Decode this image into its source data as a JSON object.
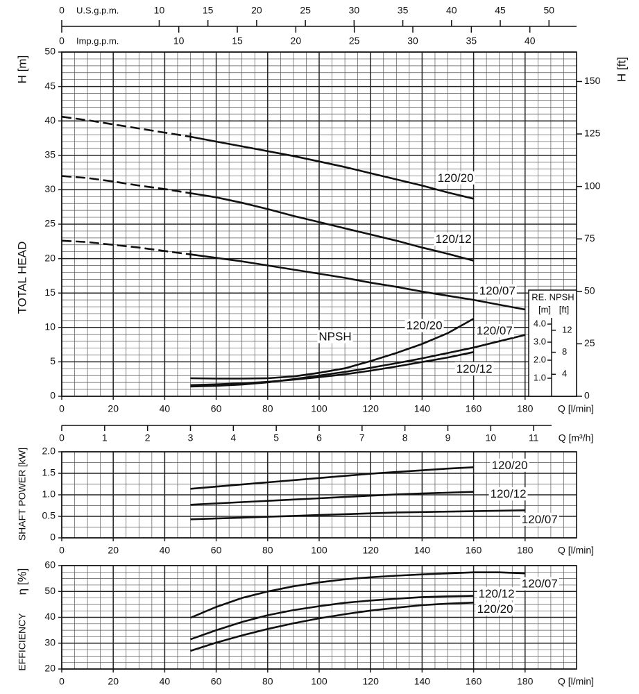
{
  "chart_data": [
    {
      "type": "line",
      "ylabel": "H [m]",
      "ylabel_2": "TOTAL HEAD",
      "y2label": "H [ft]",
      "xlabel": "Q [l/min]",
      "xlim": [
        0,
        200
      ],
      "xticks": [
        0,
        20,
        40,
        60,
        80,
        100,
        120,
        140,
        160,
        180
      ],
      "ylim": [
        0,
        50
      ],
      "yticks": [
        0,
        5,
        10,
        15,
        20,
        25,
        30,
        35,
        40,
        45,
        50
      ],
      "y2lim": [
        0,
        164.04
      ],
      "y2ticks": [
        0,
        25,
        50,
        75,
        100,
        125,
        150
      ],
      "x_minor": 5,
      "y_minor": 1,
      "grid": true,
      "color": "#111111",
      "top_axes": [
        {
          "label": "U.S.g.p.m.",
          "xlim": [
            0,
            52.83
          ],
          "xticks": [
            0,
            10,
            15,
            20,
            25,
            30,
            35,
            40,
            45,
            50
          ]
        },
        {
          "label": "Imp.g.p.m.",
          "xlim": [
            0,
            43.99
          ],
          "xticks": [
            0,
            10,
            15,
            20,
            25,
            30,
            35,
            40
          ]
        }
      ],
      "x2_axis": {
        "label": "Q [m³/h]",
        "xlim": [
          0,
          12
        ],
        "xticks": [
          0,
          1,
          2,
          3,
          4,
          5,
          6,
          7,
          8,
          9,
          10,
          11
        ]
      },
      "series": [
        {
          "name": "120/20",
          "dash_to_x": 50,
          "x": [
            0,
            10,
            20,
            30,
            40,
            50,
            60,
            70,
            80,
            90,
            100,
            110,
            120,
            130,
            140,
            150,
            160
          ],
          "values": [
            40.6,
            40.1,
            39.5,
            38.9,
            38.3,
            37.7,
            37.0,
            36.3,
            35.6,
            34.9,
            34.1,
            33.3,
            32.4,
            31.5,
            30.6,
            29.6,
            28.7
          ]
        },
        {
          "name": "120/12",
          "dash_to_x": 50,
          "x": [
            0,
            10,
            20,
            30,
            40,
            50,
            60,
            70,
            80,
            90,
            100,
            110,
            120,
            130,
            140,
            150,
            160
          ],
          "values": [
            32.0,
            31.7,
            31.2,
            30.6,
            30.1,
            29.5,
            28.9,
            28.1,
            27.2,
            26.2,
            25.3,
            24.4,
            23.5,
            22.6,
            21.6,
            20.7,
            19.7
          ]
        },
        {
          "name": "120/07",
          "dash_to_x": 50,
          "x": [
            0,
            10,
            20,
            30,
            40,
            50,
            60,
            70,
            80,
            90,
            100,
            110,
            120,
            130,
            140,
            150,
            160,
            170,
            180
          ],
          "values": [
            22.6,
            22.4,
            22.0,
            21.6,
            21.1,
            20.6,
            20.1,
            19.6,
            19.0,
            18.4,
            17.8,
            17.2,
            16.5,
            15.9,
            15.2,
            14.6,
            14.0,
            13.3,
            12.6
          ]
        }
      ]
    },
    {
      "type": "line",
      "annotation": "NPSH",
      "inset_title": "RE. NPSH",
      "inset_units": [
        "[m]",
        "[ft]"
      ],
      "xlim": [
        0,
        200
      ],
      "ylim": [
        0,
        4.5
      ],
      "yticks": [
        {
          "value": 1,
          "label": "1.0"
        },
        {
          "value": 2,
          "label": "2.0"
        },
        {
          "value": 3,
          "label": "3.0"
        },
        {
          "value": 4,
          "label": "4.0"
        }
      ],
      "y2lim": [
        0,
        14.76
      ],
      "y2ticks": [
        4,
        8,
        12
      ],
      "color": "#111111",
      "series": [
        {
          "name": "120/20",
          "x": [
            50,
            60,
            70,
            80,
            90,
            100,
            110,
            120,
            130,
            140,
            150,
            160
          ],
          "values": [
            1.0,
            0.98,
            0.98,
            1.0,
            1.1,
            1.3,
            1.55,
            1.95,
            2.4,
            2.9,
            3.5,
            4.3
          ]
        },
        {
          "name": "120/12",
          "x": [
            50,
            60,
            70,
            80,
            90,
            100,
            110,
            120,
            130,
            140,
            150,
            160
          ],
          "values": [
            0.62,
            0.66,
            0.72,
            0.8,
            0.92,
            1.06,
            1.22,
            1.42,
            1.65,
            1.9,
            2.15,
            2.45
          ]
        },
        {
          "name": "120/07",
          "x": [
            50,
            60,
            70,
            80,
            90,
            100,
            110,
            120,
            130,
            140,
            150,
            160,
            170,
            180
          ],
          "values": [
            0.54,
            0.58,
            0.65,
            0.77,
            0.95,
            1.15,
            1.35,
            1.58,
            1.83,
            2.1,
            2.4,
            2.7,
            3.05,
            3.4
          ]
        }
      ]
    },
    {
      "type": "line",
      "ylabel": "SHAFT POWER [kW]",
      "xlabel": "Q [l/min]",
      "xlim": [
        0,
        200
      ],
      "xticks": [
        0,
        20,
        40,
        60,
        80,
        100,
        120,
        140,
        160,
        180
      ],
      "ylim": [
        0,
        2
      ],
      "yticks": [
        0,
        0.5,
        {
          "value": 1,
          "label": "1.0"
        },
        1.5,
        {
          "value": 2,
          "label": "2.0"
        }
      ],
      "x_minor": 5,
      "y_minor": 0.25,
      "grid": true,
      "color": "#111111",
      "series": [
        {
          "name": "120/20",
          "x": [
            50,
            60,
            70,
            80,
            90,
            100,
            110,
            120,
            130,
            140,
            150,
            160
          ],
          "values": [
            1.14,
            1.19,
            1.24,
            1.29,
            1.34,
            1.39,
            1.44,
            1.49,
            1.53,
            1.57,
            1.61,
            1.64
          ]
        },
        {
          "name": "120/12",
          "x": [
            50,
            60,
            70,
            80,
            90,
            100,
            110,
            120,
            130,
            140,
            150,
            160
          ],
          "values": [
            0.77,
            0.8,
            0.83,
            0.86,
            0.89,
            0.92,
            0.95,
            0.98,
            1.01,
            1.03,
            1.05,
            1.07
          ]
        },
        {
          "name": "120/07",
          "x": [
            50,
            60,
            70,
            80,
            90,
            100,
            110,
            120,
            130,
            140,
            150,
            160,
            170,
            180
          ],
          "values": [
            0.43,
            0.45,
            0.47,
            0.49,
            0.51,
            0.53,
            0.55,
            0.57,
            0.59,
            0.6,
            0.61,
            0.62,
            0.63,
            0.64
          ]
        }
      ]
    },
    {
      "type": "line",
      "ylabel": "η [%]",
      "ylabel_2": "EFFICIENCY",
      "xlabel": "Q [l/min]",
      "xlim": [
        0,
        200
      ],
      "xticks": [
        0,
        20,
        40,
        60,
        80,
        100,
        120,
        140,
        160,
        180
      ],
      "ylim": [
        20,
        60
      ],
      "yticks": [
        20,
        30,
        40,
        50,
        60
      ],
      "x_minor": 5,
      "y_minor": 2.5,
      "grid": true,
      "color": "#111111",
      "series": [
        {
          "name": "120/20",
          "x": [
            50,
            60,
            70,
            80,
            90,
            100,
            110,
            120,
            130,
            140,
            150,
            160
          ],
          "values": [
            27.0,
            30.2,
            33.0,
            35.5,
            37.7,
            39.6,
            41.2,
            42.6,
            43.7,
            44.7,
            45.3,
            45.7
          ]
        },
        {
          "name": "120/12",
          "x": [
            50,
            60,
            70,
            80,
            90,
            100,
            110,
            120,
            130,
            140,
            150,
            160
          ],
          "values": [
            31.5,
            35.0,
            38.2,
            40.8,
            42.8,
            44.3,
            45.6,
            46.5,
            47.2,
            47.8,
            48.1,
            48.3
          ]
        },
        {
          "name": "120/07",
          "x": [
            50,
            60,
            70,
            80,
            90,
            100,
            110,
            120,
            130,
            140,
            150,
            160,
            170,
            180
          ],
          "values": [
            39.8,
            44.0,
            47.5,
            50.0,
            52.0,
            53.5,
            54.7,
            55.5,
            56.1,
            56.6,
            57.0,
            57.4,
            57.4,
            57.0
          ]
        }
      ]
    }
  ]
}
